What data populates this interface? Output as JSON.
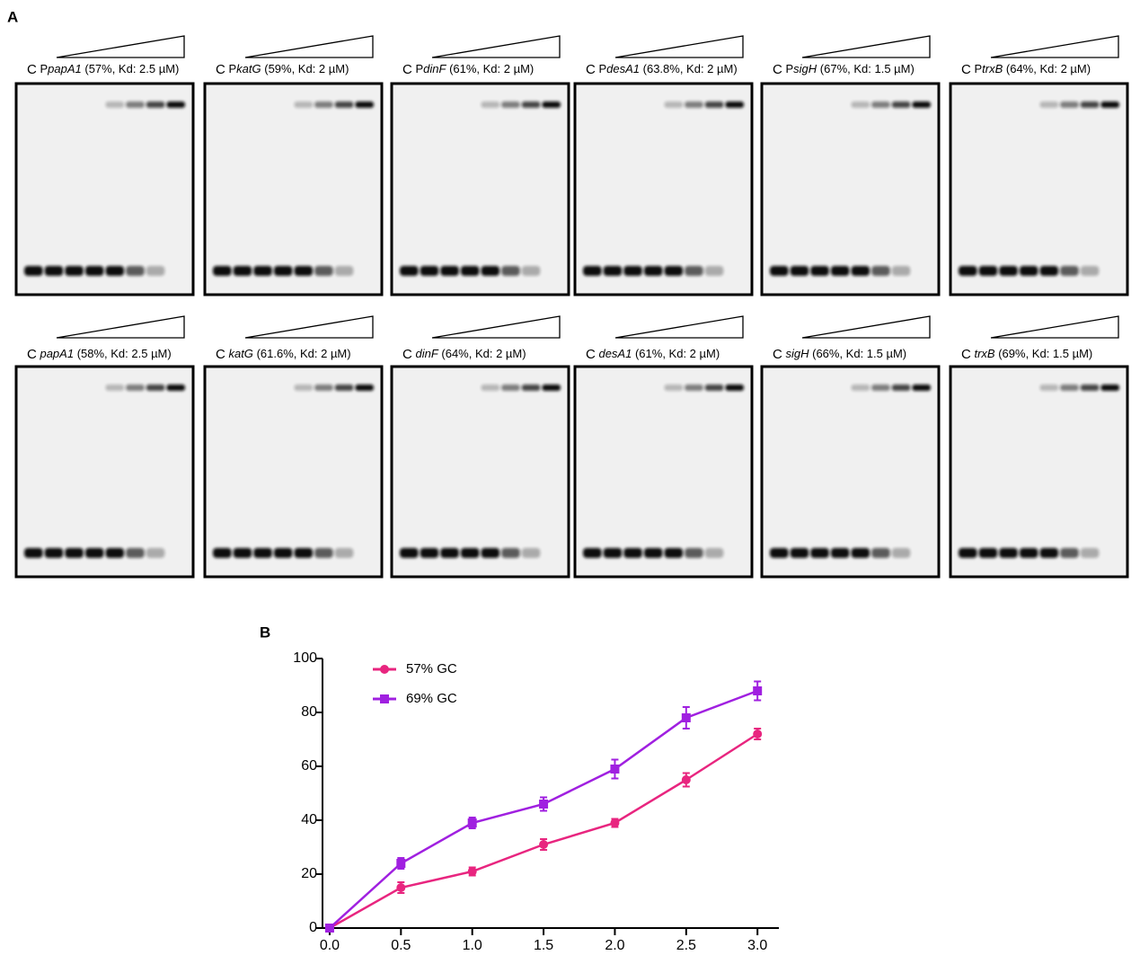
{
  "panel_labels": {
    "a": "A",
    "b": "B"
  },
  "gels": [
    {
      "lane": "C",
      "prefix": "P",
      "gene": "papA1",
      "detail": "(57%, Kd: 2.5 µM)"
    },
    {
      "lane": "C",
      "prefix": "P",
      "gene": "katG",
      "detail": "(59%, Kd: 2 µM)"
    },
    {
      "lane": "C",
      "prefix": "P",
      "gene": "dinF",
      "detail": "(61%, Kd: 2 µM)"
    },
    {
      "lane": "C",
      "prefix": "P",
      "gene": "desA1",
      "detail": "(63.8%, Kd: 2 µM)"
    },
    {
      "lane": "C",
      "prefix": "P",
      "gene": "sigH",
      "detail": "(67%, Kd: 1.5 µM)"
    },
    {
      "lane": "C",
      "prefix": "P",
      "gene": "trxB",
      "detail": "(64%, Kd: 2 µM)"
    },
    {
      "lane": "C",
      "gene": "papA1",
      "detail": "(58%, Kd: 2.5 µM)"
    },
    {
      "lane": "C",
      "gene": "katG",
      "detail": "(61.6%, Kd: 2 µM)"
    },
    {
      "lane": "C",
      "gene": "dinF",
      "detail": "(64%, Kd: 2 µM)"
    },
    {
      "lane": "C",
      "gene": "desA1",
      "detail": "(61%, Kd: 2 µM)"
    },
    {
      "lane": "C",
      "gene": "sigH",
      "detail": "(66%, Kd: 1.5 µM)"
    },
    {
      "lane": "C",
      "gene": "trxB",
      "detail": "(69%, Kd: 1.5 µM)"
    }
  ],
  "chart_data": {
    "type": "line",
    "x": [
      0,
      0.5,
      1,
      1.5,
      2,
      2.5,
      3
    ],
    "series": [
      {
        "name": "57% GC",
        "color": "#e8257f",
        "marker": "circle",
        "values": [
          0,
          15,
          21,
          31,
          39,
          55,
          72
        ],
        "errors": [
          0,
          2,
          1.5,
          2,
          1.5,
          2.5,
          2
        ]
      },
      {
        "name": "69% GC",
        "color": "#a020e0",
        "marker": "square",
        "values": [
          0,
          24,
          39,
          46,
          59,
          78,
          88
        ],
        "errors": [
          0,
          2,
          2,
          2.5,
          3.5,
          4,
          3.5
        ]
      }
    ],
    "xlim": [
      -0.05,
      3.15
    ],
    "xticks": [
      {
        "value": 0,
        "label": "0.0"
      },
      0.5,
      {
        "value": 1,
        "label": "1.0"
      },
      1.5,
      {
        "value": 2,
        "label": "2.0"
      },
      2.5,
      {
        "value": 3,
        "label": "3.0"
      }
    ],
    "ylim": [
      0,
      100
    ],
    "yticks": [
      0,
      20,
      40,
      60,
      80,
      100
    ]
  }
}
